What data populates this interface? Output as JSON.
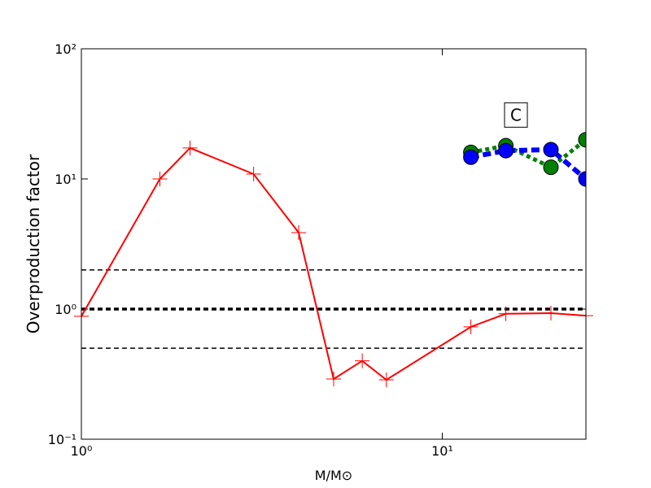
{
  "chart_data": {
    "type": "line",
    "x_label": "M/M⊙",
    "y_label": "Overproduction factor",
    "log_x": true,
    "log_y": true,
    "xlim": [
      1,
      25
    ],
    "ylim": [
      0.1,
      100
    ],
    "xticks": [
      {
        "value": 1,
        "label": "10⁰"
      },
      {
        "value": 10,
        "label": "10¹"
      }
    ],
    "yticks": [
      {
        "value": 0.1,
        "label": "10⁻¹"
      },
      {
        "value": 1,
        "label": "10⁰"
      },
      {
        "value": 10,
        "label": "10¹"
      },
      {
        "value": 100,
        "label": "10²"
      }
    ],
    "reference_lines": [
      {
        "value": 2,
        "width": 1.5
      },
      {
        "value": 1,
        "width": 3.5
      },
      {
        "value": 0.5,
        "width": 1.5
      }
    ],
    "annotation": {
      "text": "C",
      "x": 16,
      "y": 31
    },
    "series": [
      {
        "color": "#ff0000",
        "style": "solid",
        "marker": "plus",
        "x": [
          1,
          1.65,
          2,
          3,
          4,
          5,
          6,
          7,
          12,
          15,
          20,
          25
        ],
        "values": [
          0.88,
          10,
          17.3,
          10.9,
          3.87,
          0.29,
          0.4,
          0.286,
          0.73,
          0.92,
          0.93,
          0.89
        ]
      },
      {
        "color": "#008000",
        "style": "dotted",
        "marker": "circle",
        "x": [
          12,
          15,
          20,
          25
        ],
        "values": [
          16,
          18,
          12.3,
          20
        ]
      },
      {
        "color": "#0000ff",
        "style": "dashed",
        "marker": "circle",
        "x": [
          12,
          15,
          20,
          25
        ],
        "values": [
          14.7,
          16.5,
          16.8,
          10
        ]
      }
    ]
  }
}
